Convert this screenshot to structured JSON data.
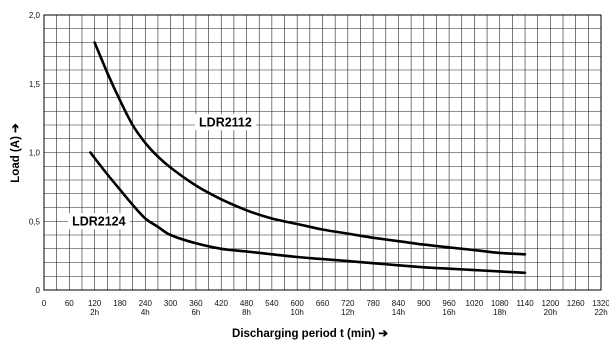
{
  "chart_data": {
    "type": "line",
    "title": "",
    "xlabel": "Discharging period t (min) ➔",
    "ylabel": "Load (A) ➔",
    "xlim": [
      0,
      1320
    ],
    "ylim": [
      0,
      2.0
    ],
    "grid": true,
    "x_ticks": [
      {
        "value": 0,
        "label": "0",
        "sublabel": ""
      },
      {
        "value": 60,
        "label": "60",
        "sublabel": ""
      },
      {
        "value": 120,
        "label": "120",
        "sublabel": "2h"
      },
      {
        "value": 180,
        "label": "180",
        "sublabel": ""
      },
      {
        "value": 240,
        "label": "240",
        "sublabel": "4h"
      },
      {
        "value": 300,
        "label": "300",
        "sublabel": ""
      },
      {
        "value": 360,
        "label": "360",
        "sublabel": "6h"
      },
      {
        "value": 420,
        "label": "420",
        "sublabel": ""
      },
      {
        "value": 480,
        "label": "480",
        "sublabel": "8h"
      },
      {
        "value": 540,
        "label": "540",
        "sublabel": ""
      },
      {
        "value": 600,
        "label": "600",
        "sublabel": "10h"
      },
      {
        "value": 660,
        "label": "660",
        "sublabel": ""
      },
      {
        "value": 720,
        "label": "720",
        "sublabel": "12h"
      },
      {
        "value": 780,
        "label": "780",
        "sublabel": ""
      },
      {
        "value": 840,
        "label": "840",
        "sublabel": "14h"
      },
      {
        "value": 900,
        "label": "900",
        "sublabel": ""
      },
      {
        "value": 960,
        "label": "960",
        "sublabel": "16h"
      },
      {
        "value": 1020,
        "label": "1020",
        "sublabel": ""
      },
      {
        "value": 1080,
        "label": "1080",
        "sublabel": "18h"
      },
      {
        "value": 1140,
        "label": "1140",
        "sublabel": ""
      },
      {
        "value": 1200,
        "label": "1200",
        "sublabel": "20h"
      },
      {
        "value": 1260,
        "label": "1260",
        "sublabel": ""
      },
      {
        "value": 1320,
        "label": "1320",
        "sublabel": "22h"
      }
    ],
    "y_ticks": [
      {
        "value": 0,
        "label": "0"
      },
      {
        "value": 0.5,
        "label": "0,5"
      },
      {
        "value": 1.0,
        "label": "1,0"
      },
      {
        "value": 1.5,
        "label": "1,5"
      },
      {
        "value": 2.0,
        "label": "2,0"
      }
    ],
    "series": [
      {
        "name": "LDR2112",
        "label_at": {
          "x": 430,
          "y": 1.22
        },
        "x": [
          120,
          150,
          180,
          210,
          240,
          270,
          300,
          360,
          420,
          480,
          540,
          600,
          660,
          720,
          780,
          840,
          900,
          960,
          1020,
          1080,
          1140
        ],
        "y": [
          1.8,
          1.58,
          1.38,
          1.2,
          1.07,
          0.97,
          0.89,
          0.76,
          0.66,
          0.58,
          0.52,
          0.48,
          0.44,
          0.41,
          0.38,
          0.355,
          0.33,
          0.31,
          0.29,
          0.27,
          0.26
        ]
      },
      {
        "name": "LDR2124",
        "label_at": {
          "x": 130,
          "y": 0.5
        },
        "x": [
          110,
          140,
          180,
          210,
          240,
          270,
          300,
          360,
          420,
          480,
          540,
          600,
          660,
          720,
          780,
          840,
          900,
          960,
          1020,
          1080,
          1140
        ],
        "y": [
          1.0,
          0.88,
          0.73,
          0.62,
          0.52,
          0.46,
          0.4,
          0.34,
          0.3,
          0.28,
          0.26,
          0.24,
          0.225,
          0.21,
          0.195,
          0.18,
          0.165,
          0.155,
          0.145,
          0.135,
          0.125
        ]
      }
    ]
  }
}
